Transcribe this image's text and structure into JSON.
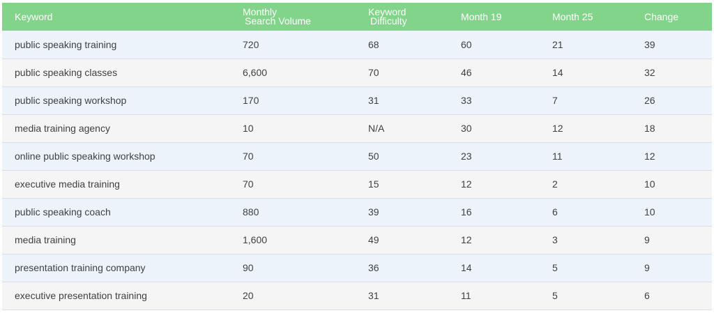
{
  "table": {
    "headers": {
      "keyword": "Keyword",
      "volume_line1": "Monthly",
      "volume_line2": "Search Volume",
      "difficulty_line1": "Keyword",
      "difficulty_line2": "Difficulty",
      "month19": "Month 19",
      "month25": "Month 25",
      "change": "Change"
    },
    "rows": [
      {
        "keyword": "public speaking training",
        "volume": "720",
        "difficulty": "68",
        "month19": "60",
        "month25": "21",
        "change": "39"
      },
      {
        "keyword": "public speaking classes",
        "volume": "6,600",
        "difficulty": "70",
        "month19": "46",
        "month25": "14",
        "change": "32"
      },
      {
        "keyword": "public speaking workshop",
        "volume": "170",
        "difficulty": "31",
        "month19": "33",
        "month25": "7",
        "change": "26"
      },
      {
        "keyword": "media training agency",
        "volume": "10",
        "difficulty": "N/A",
        "month19": "30",
        "month25": "12",
        "change": "18"
      },
      {
        "keyword": "online public speaking workshop",
        "volume": "70",
        "difficulty": "50",
        "month19": "23",
        "month25": "11",
        "change": "12"
      },
      {
        "keyword": "executive media training",
        "volume": "70",
        "difficulty": "15",
        "month19": "12",
        "month25": "2",
        "change": "10"
      },
      {
        "keyword": "public speaking coach",
        "volume": "880",
        "difficulty": "39",
        "month19": "16",
        "month25": "6",
        "change": "10"
      },
      {
        "keyword": "media training",
        "volume": "1,600",
        "difficulty": "49",
        "month19": "12",
        "month25": "3",
        "change": "9"
      },
      {
        "keyword": "presentation training company",
        "volume": "90",
        "difficulty": "36",
        "month19": "14",
        "month25": "5",
        "change": "9"
      },
      {
        "keyword": "executive presentation training",
        "volume": "20",
        "difficulty": "31",
        "month19": "11",
        "month25": "5",
        "change": "6"
      }
    ]
  }
}
